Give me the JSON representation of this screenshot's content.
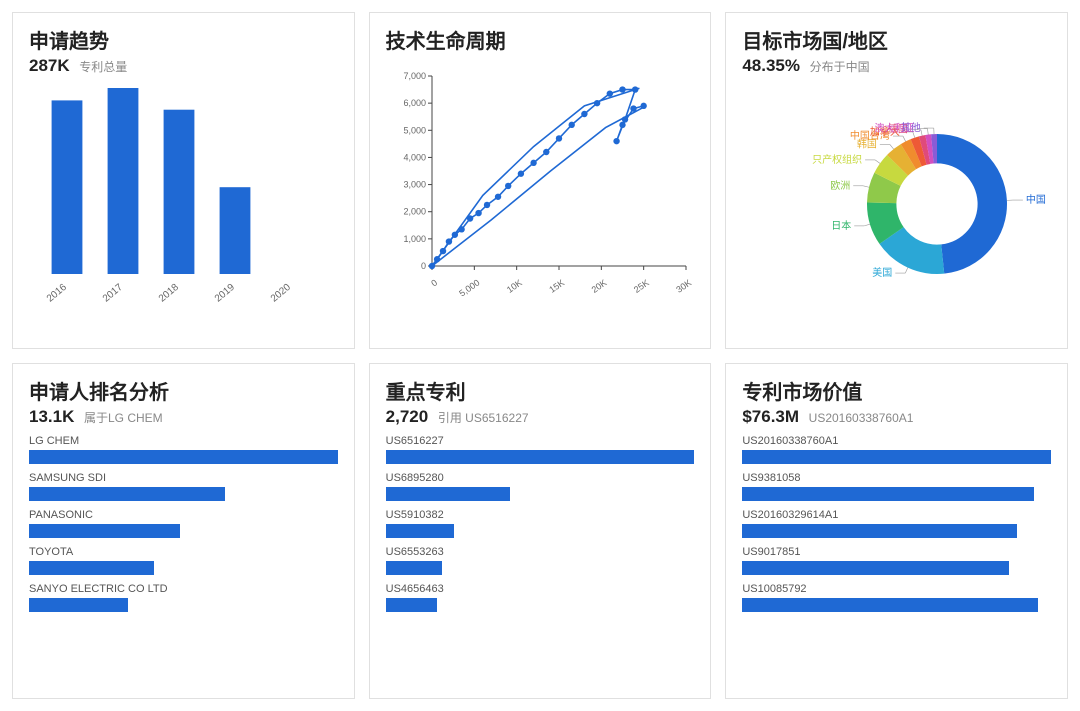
{
  "colors": {
    "blue": "#1f69d4",
    "axis": "#444",
    "tick_text": "#666"
  },
  "card1": {
    "title": "申请趋势",
    "value": "287K",
    "value_label": "专利总量",
    "chart": {
      "type": "bar",
      "categories": [
        "2016",
        "2017",
        "2018",
        "2019",
        "2020"
      ],
      "values": [
        56000,
        60000,
        53000,
        28000,
        0
      ],
      "ymax": 60000,
      "bar_color": "#1f69d4",
      "bar_width": 0.55,
      "label_rotate_deg": -40,
      "label_fontsize": 10
    }
  },
  "card2": {
    "title": "技术生命周期",
    "chart": {
      "type": "scatter-line",
      "xlim": [
        0,
        30000
      ],
      "ylim": [
        0,
        7000
      ],
      "xticks": [
        0,
        5000,
        10000,
        15000,
        20000,
        25000,
        30000
      ],
      "xtick_labels": [
        "0",
        "5,000",
        "10K",
        "15K",
        "20K",
        "25K",
        "30K"
      ],
      "yticks": [
        0,
        1000,
        2000,
        3000,
        4000,
        5000,
        6000,
        7000
      ],
      "ytick_labels": [
        "0",
        "1,000",
        "2,000",
        "3,000",
        "4,000",
        "5,000",
        "6,000",
        "7,000"
      ],
      "axis_color": "#444",
      "tick_fontsize": 9,
      "series": {
        "color": "#1f69d4",
        "marker_radius": 3.2,
        "line_width": 1.6,
        "points": [
          [
            0,
            0
          ],
          [
            600,
            250
          ],
          [
            1300,
            550
          ],
          [
            2000,
            900
          ],
          [
            2700,
            1150
          ],
          [
            3500,
            1350
          ],
          [
            4500,
            1750
          ],
          [
            5500,
            1950
          ],
          [
            6500,
            2250
          ],
          [
            7800,
            2550
          ],
          [
            9000,
            2950
          ],
          [
            10500,
            3400
          ],
          [
            12000,
            3800
          ],
          [
            13500,
            4200
          ],
          [
            15000,
            4700
          ],
          [
            16500,
            5200
          ],
          [
            18000,
            5600
          ],
          [
            19500,
            6000
          ],
          [
            21000,
            6350
          ],
          [
            22500,
            6500
          ],
          [
            24000,
            6500
          ],
          [
            22800,
            5400
          ],
          [
            21800,
            4600
          ],
          [
            22500,
            5200
          ],
          [
            23800,
            5800
          ],
          [
            25000,
            5900
          ]
        ],
        "envelope_top": [
          [
            0,
            0
          ],
          [
            6000,
            2600
          ],
          [
            12000,
            4400
          ],
          [
            18000,
            5900
          ],
          [
            24500,
            6550
          ]
        ],
        "envelope_bot": [
          [
            0,
            0
          ],
          [
            7000,
            1700
          ],
          [
            14000,
            3500
          ],
          [
            20500,
            5100
          ],
          [
            25000,
            5850
          ]
        ]
      }
    }
  },
  "card3": {
    "title": "目标市场国/地区",
    "value": "48.35%",
    "value_label": "分布于中国",
    "chart": {
      "type": "donut",
      "inner_ratio": 0.58,
      "label_fontsize": 10,
      "slices": [
        {
          "label": "中国",
          "value": 48.35,
          "color": "#1f69d4"
        },
        {
          "label": "美国",
          "value": 17,
          "color": "#2ba7d6"
        },
        {
          "label": "日本",
          "value": 10,
          "color": "#2fb56a"
        },
        {
          "label": "欧洲",
          "value": 7,
          "color": "#8fc94a"
        },
        {
          "label": "只产权组织",
          "value": 5,
          "color": "#c7d93f"
        },
        {
          "label": "韩国",
          "value": 4,
          "color": "#e6b133"
        },
        {
          "label": "中国台湾",
          "value": 2.5,
          "color": "#f08c2e"
        },
        {
          "label": "加拿大",
          "value": 2,
          "color": "#ee5a36"
        },
        {
          "label": "德国",
          "value": 1.5,
          "color": "#e04a7a"
        },
        {
          "label": "澳大利亚",
          "value": 1.3,
          "color": "#d24fc0"
        },
        {
          "label": "其他",
          "value": 1.35,
          "color": "#8a5cd6"
        }
      ]
    }
  },
  "card4": {
    "title": "申请人排名分析",
    "value": "13.1K",
    "value_label": "属于LG CHEM",
    "chart": {
      "type": "hbar",
      "bar_color": "#1f69d4",
      "max": 13100,
      "items": [
        {
          "label": "LG CHEM",
          "value": 13100
        },
        {
          "label": "SAMSUNG SDI",
          "value": 8300
        },
        {
          "label": "PANASONIC",
          "value": 6400
        },
        {
          "label": "TOYOTA",
          "value": 5300
        },
        {
          "label": "SANYO ELECTRIC CO LTD",
          "value": 4200
        }
      ]
    }
  },
  "card5": {
    "title": "重点专利",
    "value": "2,720",
    "value_label": "引用 US6516227",
    "chart": {
      "type": "hbar",
      "bar_color": "#1f69d4",
      "max": 2720,
      "items": [
        {
          "label": "US6516227",
          "value": 2720
        },
        {
          "label": "US6895280",
          "value": 1100
        },
        {
          "label": "US5910382",
          "value": 600
        },
        {
          "label": "US6553263",
          "value": 500
        },
        {
          "label": "US4656463",
          "value": 450
        }
      ]
    }
  },
  "card6": {
    "title": "专利市场价值",
    "value": "$76.3M",
    "value_label": "US20160338760A1",
    "chart": {
      "type": "hbar",
      "bar_color": "#1f69d4",
      "max": 76.3,
      "items": [
        {
          "label": "US20160338760A1",
          "value": 76.3
        },
        {
          "label": "US9381058",
          "value": 72
        },
        {
          "label": "US20160329614A1",
          "value": 68
        },
        {
          "label": "US9017851",
          "value": 66
        },
        {
          "label": "US10085792",
          "value": 73
        }
      ]
    }
  }
}
